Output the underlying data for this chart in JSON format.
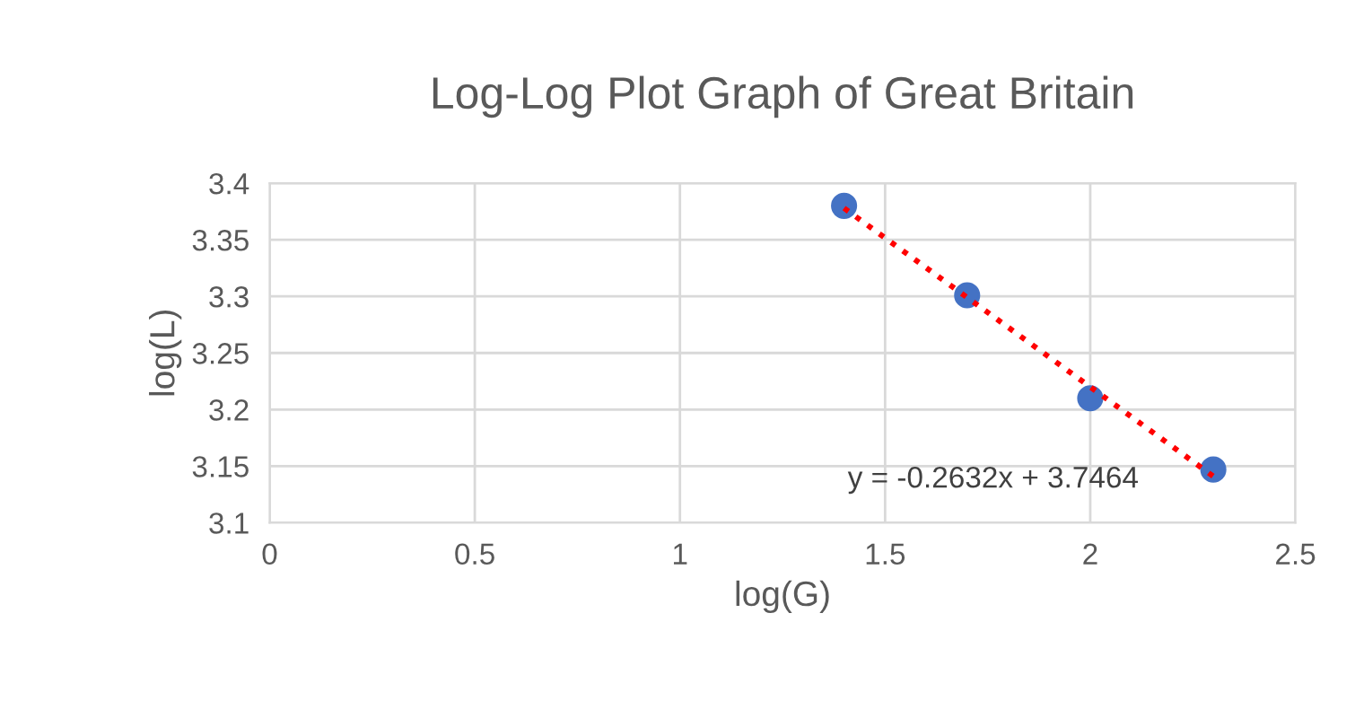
{
  "chart_data": {
    "type": "scatter",
    "title": "Log-Log Plot Graph of Great Britain",
    "xlabel": "log(G)",
    "ylabel": "log(L)",
    "series": [
      {
        "color": "#4472c4",
        "x": [
          1.4,
          1.7,
          2.0,
          2.3
        ],
        "values": [
          3.38,
          3.301,
          3.21,
          3.147
        ],
        "marker": "circle"
      },
      {
        "type": "line",
        "color": "#ff0000",
        "x": [
          1.4,
          2.3
        ],
        "values": [
          3.378,
          3.141
        ],
        "line_style": "dotted",
        "marker": "none"
      }
    ],
    "xlim": [
      0,
      2.5
    ],
    "xticks": [
      0,
      0.5,
      1,
      1.5,
      2,
      2.5
    ],
    "ylim": [
      3.1,
      3.4
    ],
    "yticks": [
      3.1,
      3.15,
      3.2,
      3.25,
      3.3,
      3.35,
      3.4
    ],
    "grid": true,
    "annotations": [
      "y = -0.2632x + 3.7464"
    ]
  }
}
